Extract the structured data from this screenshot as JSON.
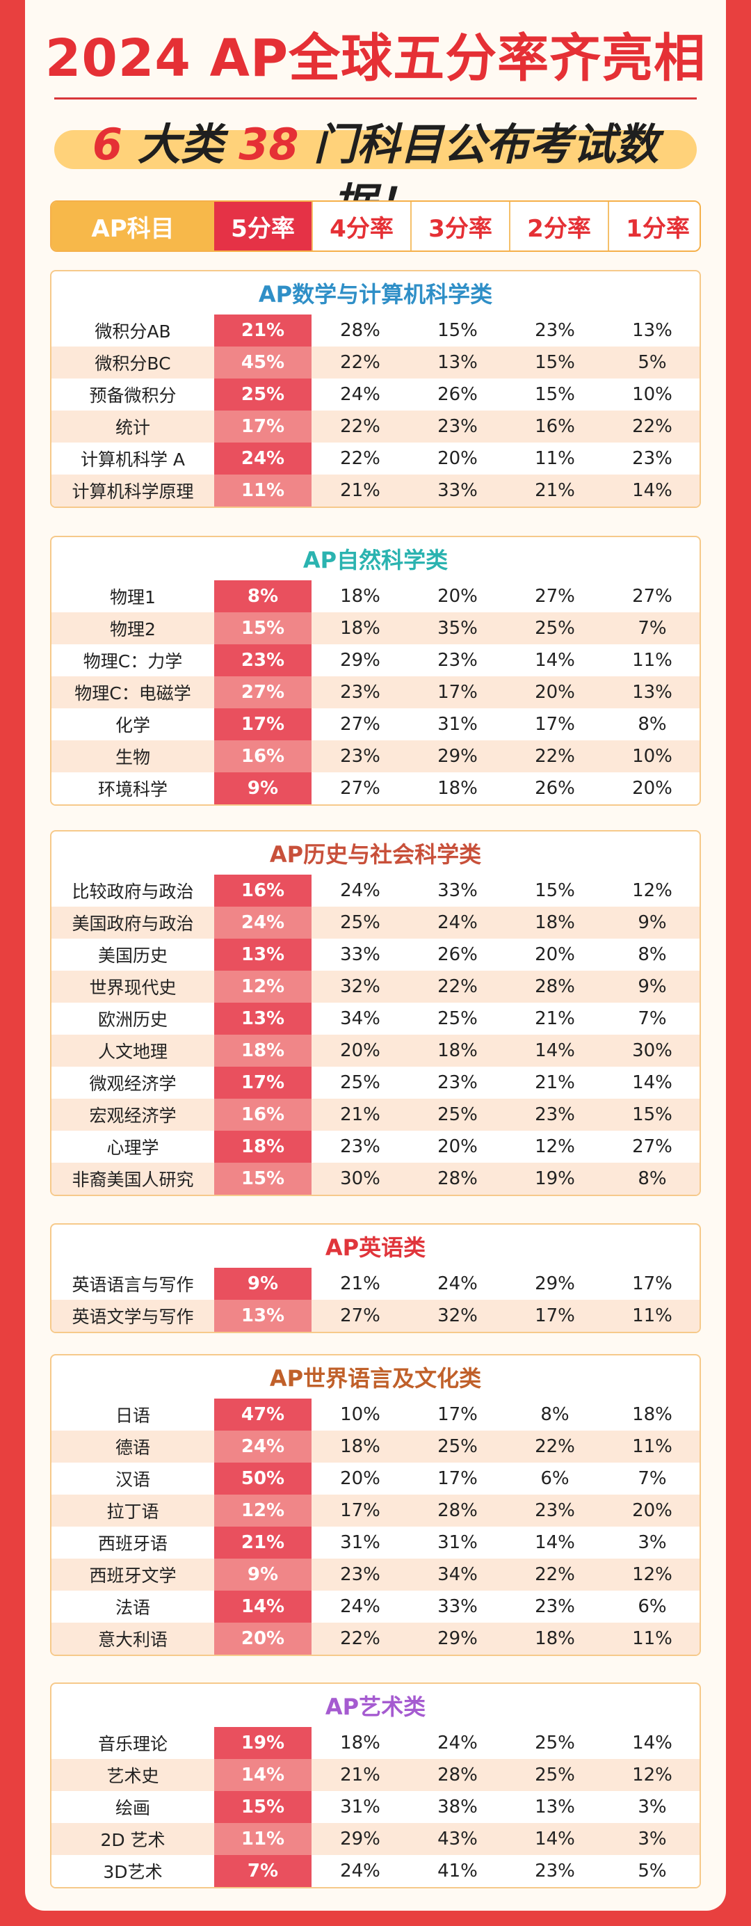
{
  "title": "2024 AP全球五分率齐亮相",
  "banner": {
    "pre": "6",
    "mid1": " 大类 ",
    "num2": "38",
    "post": " 门科目公布考试数据！"
  },
  "header": [
    "AP科目",
    "5分率",
    "4分率",
    "3分率",
    "2分率",
    "1分率"
  ],
  "colors": {
    "accent": "#e53035",
    "header_gold": "#f7b84a",
    "five_col": "#e9505e"
  },
  "sections": [
    {
      "title": "AP数学与计算机科学类",
      "color": "#2f8fc7",
      "rows": [
        [
          "微积分AB",
          "21%",
          "28%",
          "15%",
          "23%",
          "13%"
        ],
        [
          "微积分BC",
          "45%",
          "22%",
          "13%",
          "15%",
          "5%"
        ],
        [
          "预备微积分",
          "25%",
          "24%",
          "26%",
          "15%",
          "10%"
        ],
        [
          "统计",
          "17%",
          "22%",
          "23%",
          "16%",
          "22%"
        ],
        [
          "计算机科学 A",
          "24%",
          "22%",
          "20%",
          "11%",
          "23%"
        ],
        [
          "计算机科学原理",
          "11%",
          "21%",
          "33%",
          "21%",
          "14%"
        ]
      ]
    },
    {
      "title": "AP自然科学类",
      "color": "#2bb3b0",
      "rows": [
        [
          "物理1",
          "8%",
          "18%",
          "20%",
          "27%",
          "27%"
        ],
        [
          "物理2",
          "15%",
          "18%",
          "35%",
          "25%",
          "7%"
        ],
        [
          "物理C：力学",
          "23%",
          "29%",
          "23%",
          "14%",
          "11%"
        ],
        [
          "物理C：电磁学",
          "27%",
          "23%",
          "17%",
          "20%",
          "13%"
        ],
        [
          "化学",
          "17%",
          "27%",
          "31%",
          "17%",
          "8%"
        ],
        [
          "生物",
          "16%",
          "23%",
          "29%",
          "22%",
          "10%"
        ],
        [
          "环境科学",
          "9%",
          "27%",
          "18%",
          "26%",
          "20%"
        ]
      ]
    },
    {
      "title": "AP历史与社会科学类",
      "color": "#c8503a",
      "rows": [
        [
          "比较政府与政治",
          "16%",
          "24%",
          "33%",
          "15%",
          "12%"
        ],
        [
          "美国政府与政治",
          "24%",
          "25%",
          "24%",
          "18%",
          "9%"
        ],
        [
          "美国历史",
          "13%",
          "33%",
          "26%",
          "20%",
          "8%"
        ],
        [
          "世界现代史",
          "12%",
          "32%",
          "22%",
          "28%",
          "9%"
        ],
        [
          "欧洲历史",
          "13%",
          "34%",
          "25%",
          "21%",
          "7%"
        ],
        [
          "人文地理",
          "18%",
          "20%",
          "18%",
          "14%",
          "30%"
        ],
        [
          "微观经济学",
          "17%",
          "25%",
          "23%",
          "21%",
          "14%"
        ],
        [
          "宏观经济学",
          "16%",
          "21%",
          "25%",
          "23%",
          "15%"
        ],
        [
          "心理学",
          "18%",
          "23%",
          "20%",
          "12%",
          "27%"
        ],
        [
          "非裔美国人研究",
          "15%",
          "30%",
          "28%",
          "19%",
          "8%"
        ]
      ]
    },
    {
      "title": "AP英语类",
      "color": "#e0353b",
      "rows": [
        [
          "英语语言与写作",
          "9%",
          "21%",
          "24%",
          "29%",
          "17%"
        ],
        [
          "英语文学与写作",
          "13%",
          "27%",
          "32%",
          "17%",
          "11%"
        ]
      ]
    },
    {
      "title": "AP世界语言及文化类",
      "color": "#c0602a",
      "rows": [
        [
          "日语",
          "47%",
          "10%",
          "17%",
          "8%",
          "18%"
        ],
        [
          "德语",
          "24%",
          "18%",
          "25%",
          "22%",
          "11%"
        ],
        [
          "汉语",
          "50%",
          "20%",
          "17%",
          "6%",
          "7%"
        ],
        [
          "拉丁语",
          "12%",
          "17%",
          "28%",
          "23%",
          "20%"
        ],
        [
          "西班牙语",
          "21%",
          "31%",
          "31%",
          "14%",
          "3%"
        ],
        [
          "西班牙文学",
          "9%",
          "23%",
          "34%",
          "22%",
          "12%"
        ],
        [
          "法语",
          "14%",
          "24%",
          "33%",
          "23%",
          "6%"
        ],
        [
          "意大利语",
          "20%",
          "22%",
          "29%",
          "18%",
          "11%"
        ]
      ]
    },
    {
      "title": "AP艺术类",
      "color": "#a55bd0",
      "rows": [
        [
          "音乐理论",
          "19%",
          "18%",
          "24%",
          "25%",
          "14%"
        ],
        [
          "艺术史",
          "14%",
          "21%",
          "28%",
          "25%",
          "12%"
        ],
        [
          "绘画",
          "15%",
          "31%",
          "38%",
          "13%",
          "3%"
        ],
        [
          "2D 艺术",
          "11%",
          "29%",
          "43%",
          "14%",
          "3%"
        ],
        [
          "3D艺术",
          "7%",
          "24%",
          "41%",
          "23%",
          "5%"
        ]
      ]
    }
  ]
}
